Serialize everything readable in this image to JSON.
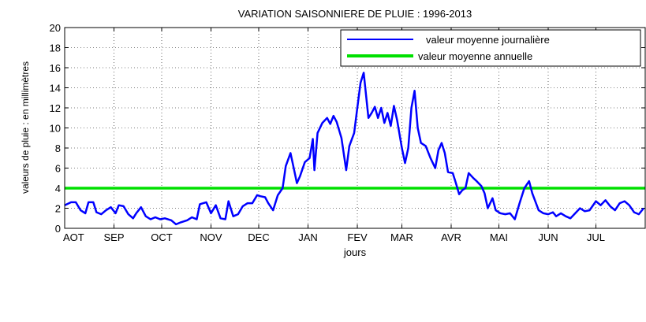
{
  "chart_data": {
    "type": "line",
    "title": "VARIATION SAISONNIERE DE PLUIE : 1996-2013",
    "x_label": "jours",
    "y_label": "valeurs de pluie : en millimètres",
    "xlim": [
      0,
      365
    ],
    "ylim": [
      0,
      20
    ],
    "yticks": [
      0,
      2,
      4,
      6,
      8,
      10,
      12,
      14,
      16,
      18,
      20
    ],
    "xticks": [
      {
        "value": 0,
        "label": "AOT"
      },
      {
        "value": 31,
        "label": "SEP"
      },
      {
        "value": 61,
        "label": "OCT"
      },
      {
        "value": 92,
        "label": "NOV"
      },
      {
        "value": 122,
        "label": "DEC"
      },
      {
        "value": 153,
        "label": "JAN"
      },
      {
        "value": 184,
        "label": "FEV"
      },
      {
        "value": 212,
        "label": "MAR"
      },
      {
        "value": 243,
        "label": "AVR"
      },
      {
        "value": 273,
        "label": "MAI"
      },
      {
        "value": 304,
        "label": "JUN"
      },
      {
        "value": 334,
        "label": "JUL"
      }
    ],
    "grid": true,
    "legend": "upper right",
    "series": [
      {
        "name": "valeur moyenne journalière",
        "color": "#0000ff",
        "x": [
          0,
          4,
          7,
          10,
          13,
          15,
          18,
          20,
          23,
          26,
          29,
          32,
          34,
          37,
          40,
          43,
          45,
          48,
          51,
          54,
          57,
          60,
          63,
          67,
          70,
          73,
          77,
          80,
          83,
          85,
          89,
          92,
          95,
          98,
          101,
          103,
          106,
          109,
          112,
          115,
          118,
          121,
          123,
          126,
          128,
          131,
          134,
          137,
          139,
          142,
          144,
          146,
          148,
          151,
          154,
          156,
          157,
          159,
          162,
          165,
          167,
          169,
          171,
          174,
          177,
          179,
          182,
          184,
          186,
          188,
          189,
          191,
          193,
          195,
          197,
          199,
          201,
          203,
          205,
          207,
          209,
          212,
          214,
          216,
          218,
          220,
          222,
          224,
          227,
          230,
          233,
          235,
          237,
          239,
          241,
          244,
          246,
          248,
          250,
          252,
          254,
          257,
          259,
          262,
          264,
          266,
          269,
          271,
          274,
          277,
          280,
          283,
          286,
          289,
          292,
          294,
          298,
          301,
          304,
          307,
          309,
          312,
          315,
          318,
          321,
          324,
          327,
          330,
          334,
          337,
          340,
          343,
          346,
          349,
          352,
          355,
          358,
          361,
          364
        ],
        "values": [
          2.3,
          2.6,
          2.6,
          1.8,
          1.5,
          2.6,
          2.6,
          1.6,
          1.4,
          1.8,
          2.1,
          1.5,
          2.3,
          2.2,
          1.4,
          1.0,
          1.5,
          2.1,
          1.2,
          0.9,
          1.1,
          0.9,
          1.0,
          0.8,
          0.4,
          0.6,
          0.8,
          1.1,
          0.9,
          2.4,
          2.6,
          1.5,
          2.3,
          1.0,
          0.9,
          2.7,
          1.2,
          1.4,
          2.2,
          2.5,
          2.5,
          3.3,
          3.2,
          3.1,
          2.5,
          1.8,
          3.3,
          4.0,
          6.2,
          7.5,
          6.0,
          4.5,
          5.2,
          6.6,
          7.0,
          8.9,
          5.8,
          9.5,
          10.5,
          11.0,
          10.4,
          11.2,
          10.6,
          9.0,
          5.8,
          8.2,
          9.5,
          12.0,
          14.5,
          15.5,
          14.0,
          11.0,
          11.5,
          12.1,
          11.0,
          12.0,
          10.5,
          11.5,
          10.2,
          12.2,
          10.8,
          8.0,
          6.5,
          8.0,
          12.0,
          13.7,
          10.0,
          8.5,
          8.2,
          7.0,
          6.0,
          7.8,
          8.5,
          7.5,
          5.6,
          5.5,
          4.5,
          3.4,
          3.8,
          4.0,
          5.5,
          5.0,
          4.7,
          4.2,
          3.5,
          2.0,
          3.0,
          1.8,
          1.5,
          1.4,
          1.5,
          0.9,
          2.5,
          4.0,
          4.7,
          3.5,
          1.8,
          1.5,
          1.4,
          1.6,
          1.2,
          1.5,
          1.2,
          1.0,
          1.5,
          2.0,
          1.7,
          1.8,
          2.7,
          2.3,
          2.8,
          2.2,
          1.8,
          2.5,
          2.7,
          2.3,
          1.6,
          1.4,
          2.0
        ]
      },
      {
        "name": "valeur moyenne annuelle",
        "color": "#00e000",
        "x": [
          0,
          365
        ],
        "values": [
          4,
          4
        ]
      }
    ]
  }
}
